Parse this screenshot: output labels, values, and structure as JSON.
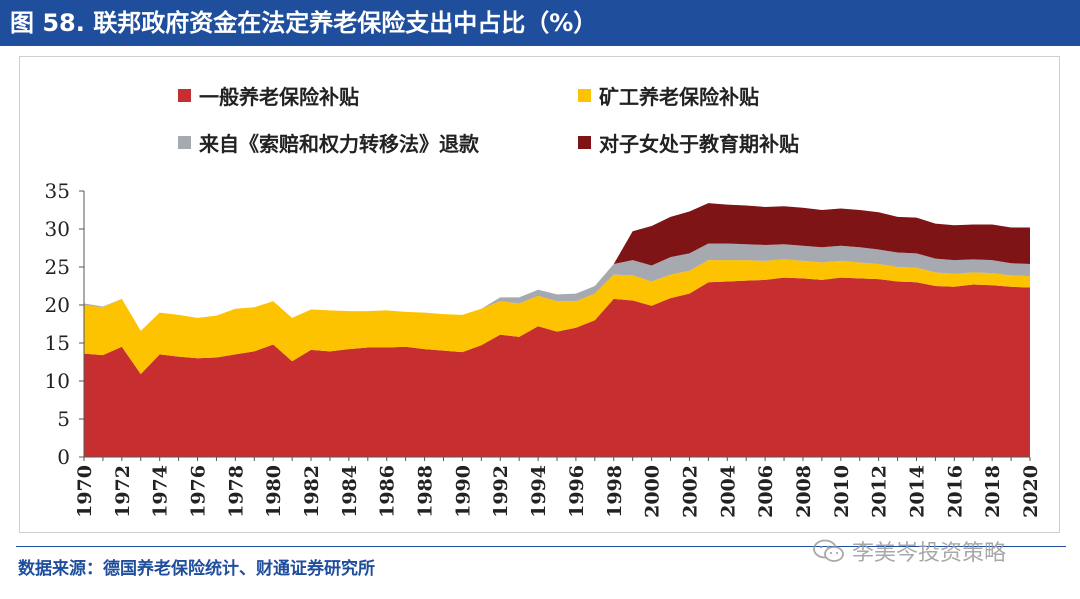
{
  "header": {
    "title": "图 58. 联邦政府资金在法定养老保险支出中占比（%）"
  },
  "footer": {
    "source": "数据来源：德国养老保险统计、财通证券研究所"
  },
  "watermark": {
    "text": "李美岑投资策略",
    "icon": "wechat-icon"
  },
  "chart_data": {
    "type": "area",
    "stacked": true,
    "title": "联邦政府资金在法定养老保险支出中占比（%）",
    "xlabel": "",
    "ylabel": "",
    "ylim": [
      0,
      35
    ],
    "y_ticks": [
      "0",
      "5",
      "10",
      "15",
      "20",
      "25",
      "30",
      "35"
    ],
    "x_tick_labels": [
      "1970",
      "1972",
      "1974",
      "1976",
      "1978",
      "1980",
      "1982",
      "1984",
      "1986",
      "1988",
      "1990",
      "1992",
      "1994",
      "1996",
      "1998",
      "2000",
      "2002",
      "2004",
      "2006",
      "2008",
      "2010",
      "2012",
      "2014",
      "2016",
      "2018",
      "2020"
    ],
    "x": [
      1970,
      1971,
      1972,
      1973,
      1974,
      1975,
      1976,
      1977,
      1978,
      1979,
      1980,
      1981,
      1982,
      1983,
      1984,
      1985,
      1986,
      1987,
      1988,
      1989,
      1990,
      1991,
      1992,
      1993,
      1994,
      1995,
      1996,
      1997,
      1998,
      1999,
      2000,
      2001,
      2002,
      2003,
      2004,
      2005,
      2006,
      2007,
      2008,
      2009,
      2010,
      2011,
      2012,
      2013,
      2014,
      2015,
      2016,
      2017,
      2018,
      2019,
      2020
    ],
    "series": [
      {
        "name": "一般养老保险补贴",
        "color": "#c72e30",
        "values": [
          13.6,
          13.4,
          14.5,
          10.9,
          13.5,
          13.2,
          13.0,
          13.1,
          13.5,
          13.9,
          14.8,
          12.6,
          14.1,
          13.9,
          14.2,
          14.4,
          14.4,
          14.5,
          14.2,
          14.0,
          13.8,
          14.7,
          16.1,
          15.8,
          17.2,
          16.5,
          17.0,
          18.0,
          20.8,
          20.6,
          19.9,
          20.9,
          21.5,
          23.0,
          23.1,
          23.2,
          23.3,
          23.6,
          23.5,
          23.3,
          23.6,
          23.5,
          23.4,
          23.1,
          23.0,
          22.5,
          22.4,
          22.7,
          22.6,
          22.4,
          22.3
        ]
      },
      {
        "name": "矿工养老保险补贴",
        "color": "#fdc300",
        "values": [
          6.4,
          6.3,
          6.3,
          5.7,
          5.5,
          5.5,
          5.3,
          5.5,
          6.0,
          5.8,
          5.7,
          5.7,
          5.3,
          5.4,
          5.0,
          4.8,
          4.9,
          4.6,
          4.8,
          4.8,
          4.9,
          4.8,
          4.4,
          4.4,
          4.0,
          4.0,
          3.5,
          3.5,
          3.2,
          3.3,
          3.2,
          3.1,
          3.0,
          2.9,
          2.8,
          2.7,
          2.5,
          2.4,
          2.3,
          2.3,
          2.2,
          2.1,
          2.0,
          1.9,
          1.9,
          1.8,
          1.7,
          1.6,
          1.6,
          1.5,
          1.5
        ]
      },
      {
        "name": "来自《索赔和权力转移法》退款",
        "color": "#a6a9b0",
        "values": [
          0.2,
          0.1,
          0,
          0,
          0,
          0,
          0,
          0,
          0,
          0,
          0,
          0,
          0,
          0,
          0,
          0,
          0,
          0,
          0,
          0,
          0,
          0,
          0.5,
          0.8,
          0.8,
          0.9,
          1.0,
          1.0,
          1.4,
          2.0,
          2.1,
          2.3,
          2.3,
          2.2,
          2.2,
          2.1,
          2.1,
          2.0,
          2.0,
          2.0,
          2.0,
          2.0,
          1.9,
          1.9,
          1.9,
          1.8,
          1.8,
          1.7,
          1.7,
          1.6,
          1.6
        ]
      },
      {
        "name": "对子女处于教育期补贴",
        "color": "#7e1416",
        "values": [
          0,
          0,
          0,
          0,
          0,
          0,
          0,
          0,
          0,
          0,
          0,
          0,
          0,
          0,
          0,
          0,
          0,
          0,
          0,
          0,
          0,
          0,
          0,
          0,
          0,
          0,
          0,
          0,
          0,
          3.8,
          5.2,
          5.3,
          5.5,
          5.3,
          5.1,
          5.1,
          5.0,
          5.0,
          5.0,
          4.9,
          4.9,
          4.9,
          4.9,
          4.7,
          4.7,
          4.6,
          4.6,
          4.6,
          4.7,
          4.7,
          4.8
        ]
      }
    ],
    "legend": [
      {
        "label": "一般养老保险补贴",
        "color": "#c72e30"
      },
      {
        "label": "矿工养老保险补贴",
        "color": "#fdc300"
      },
      {
        "label": "来自《索赔和权力转移法》退款",
        "color": "#a6a9b0"
      },
      {
        "label": "对子女处于教育期补贴",
        "color": "#7e1416"
      }
    ],
    "legend_position": "top",
    "grid": false
  }
}
